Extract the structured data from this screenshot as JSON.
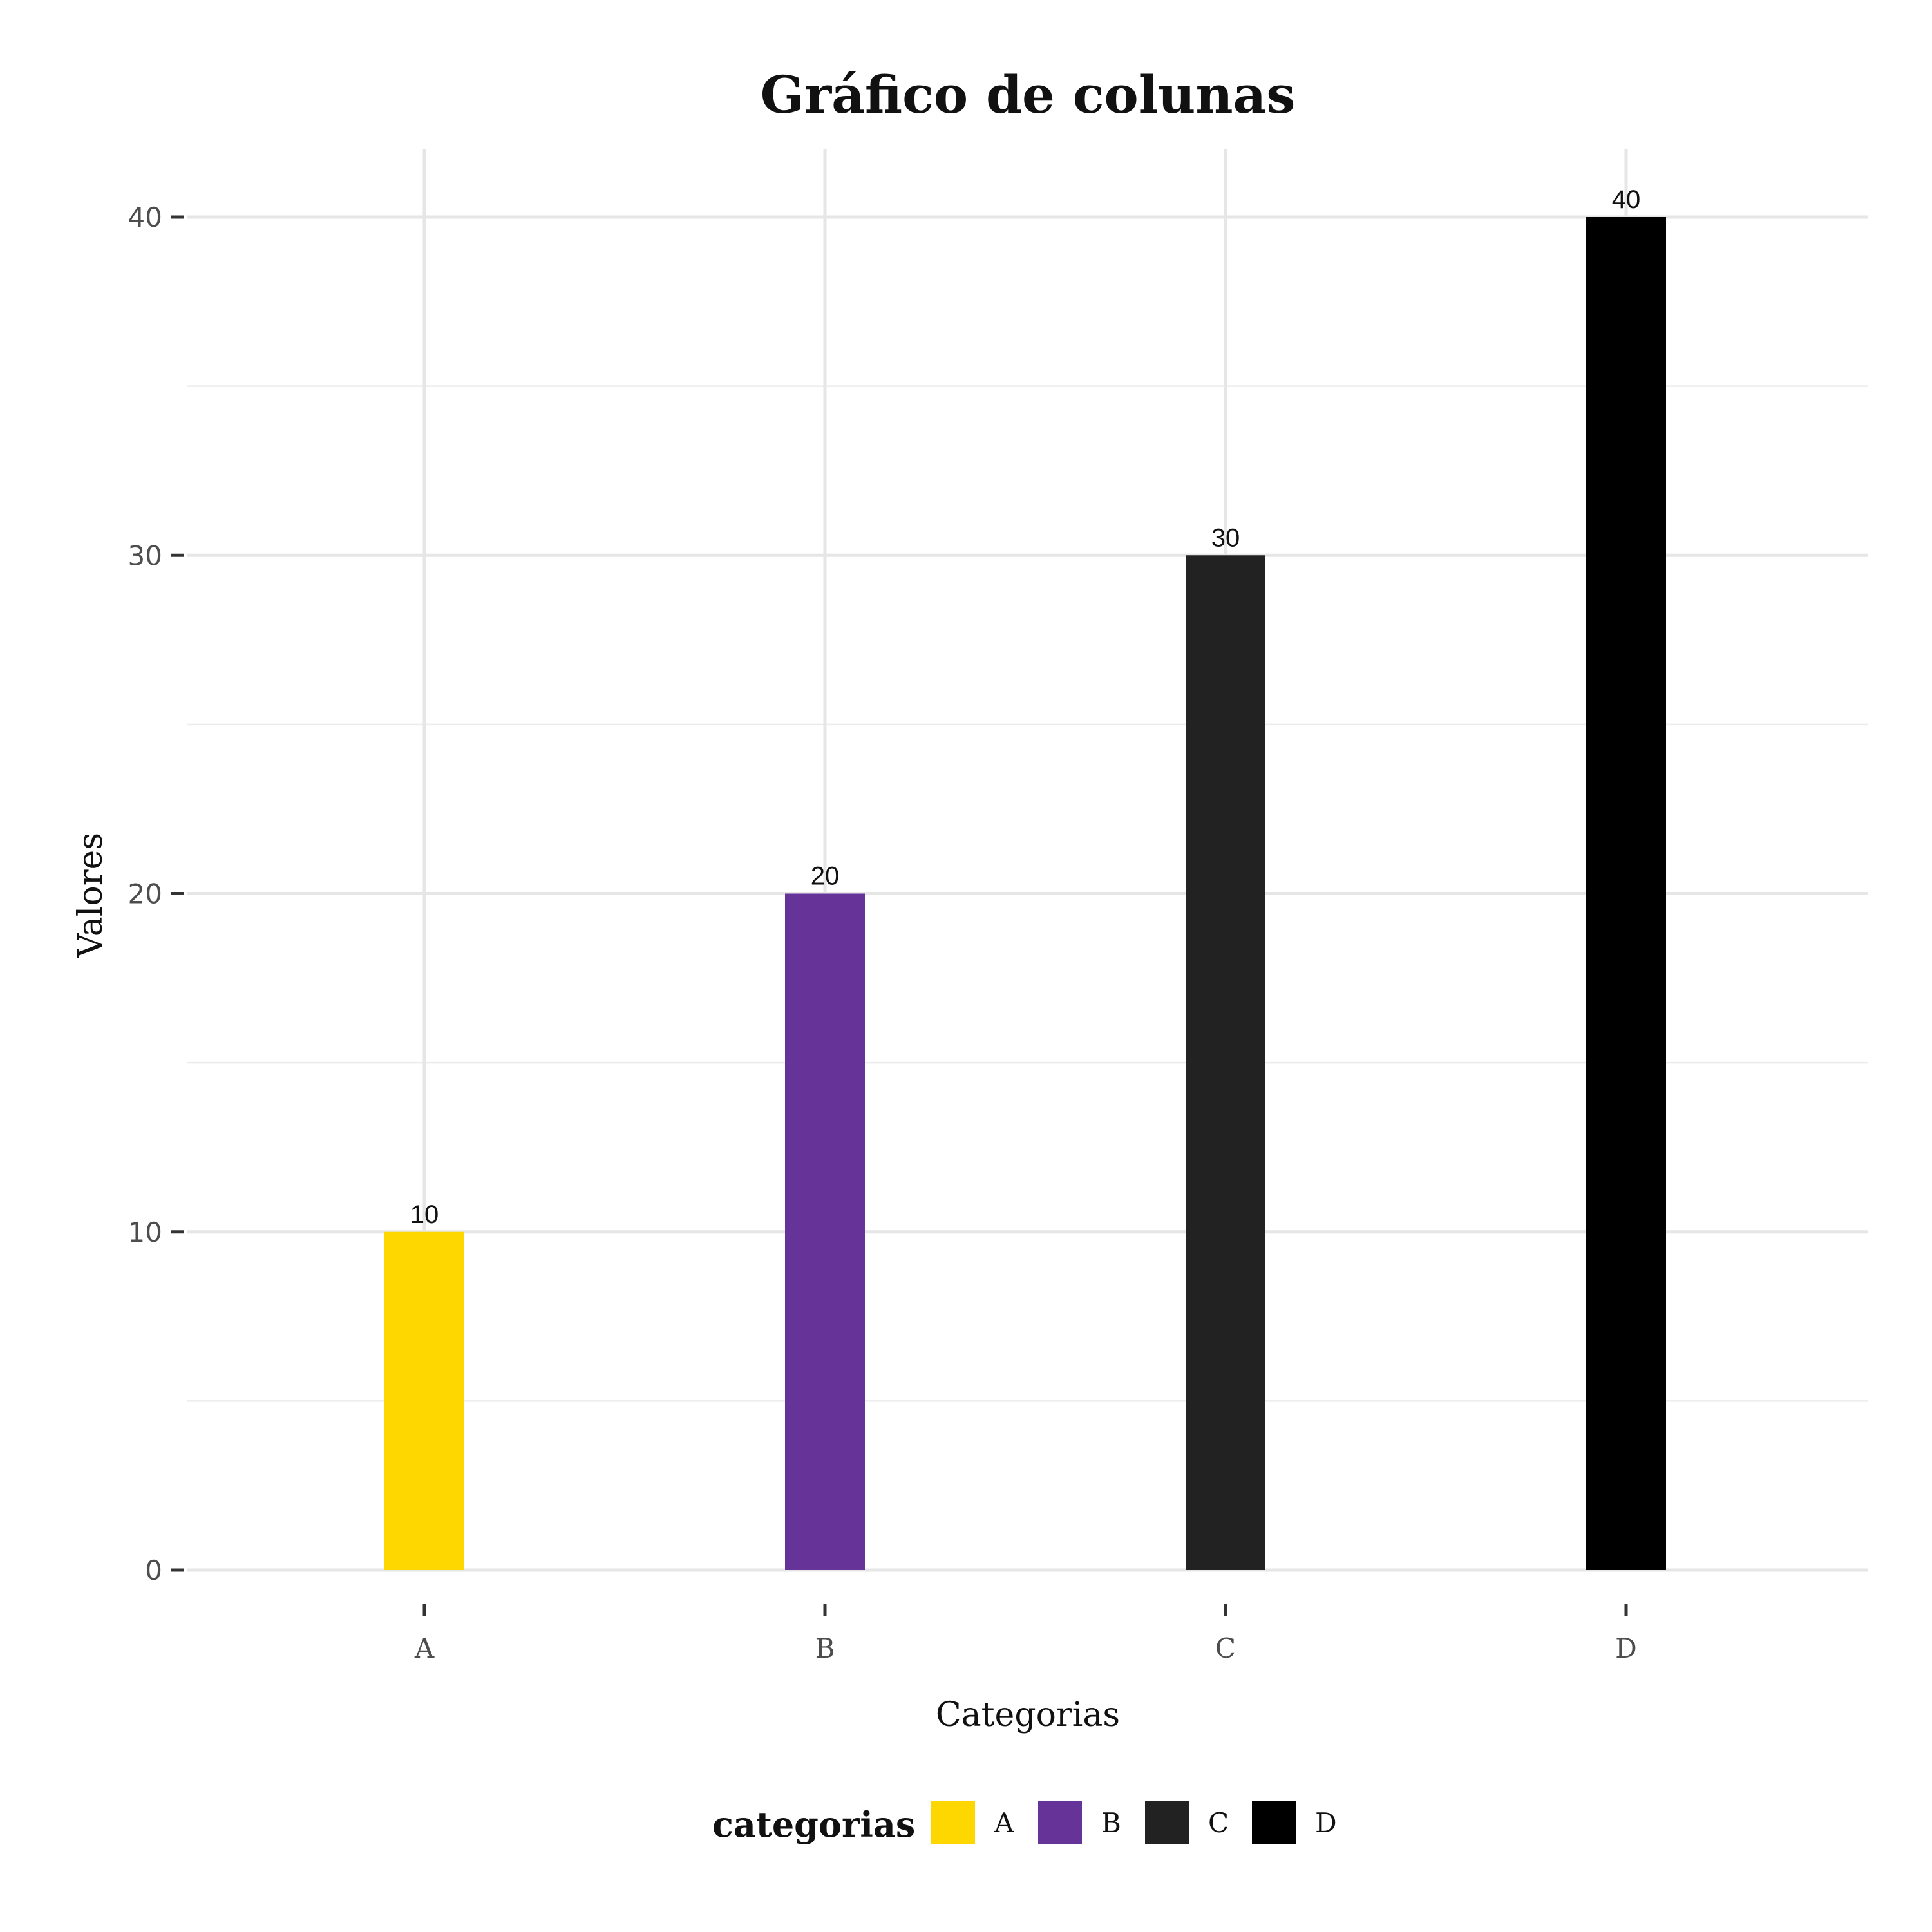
{
  "chart_data": {
    "type": "bar",
    "title": "Gráfico de colunas",
    "xlabel": "Categorias",
    "ylabel": "Valores",
    "categories": [
      "A",
      "B",
      "C",
      "D"
    ],
    "values": [
      10,
      20,
      30,
      40
    ],
    "data_labels": [
      "10",
      "20",
      "30",
      "40"
    ],
    "colors": [
      "#FFD700",
      "#663399",
      "#222222",
      "#000000"
    ],
    "ylim": [
      0,
      40
    ],
    "yticks": [
      0,
      10,
      20,
      30,
      40
    ],
    "ytick_labels": [
      "0",
      "10",
      "20",
      "30",
      "40"
    ],
    "grid": true,
    "legend": {
      "title": "categorias",
      "placement": "bottom",
      "entries": [
        "A",
        "B",
        "C",
        "D"
      ]
    }
  }
}
